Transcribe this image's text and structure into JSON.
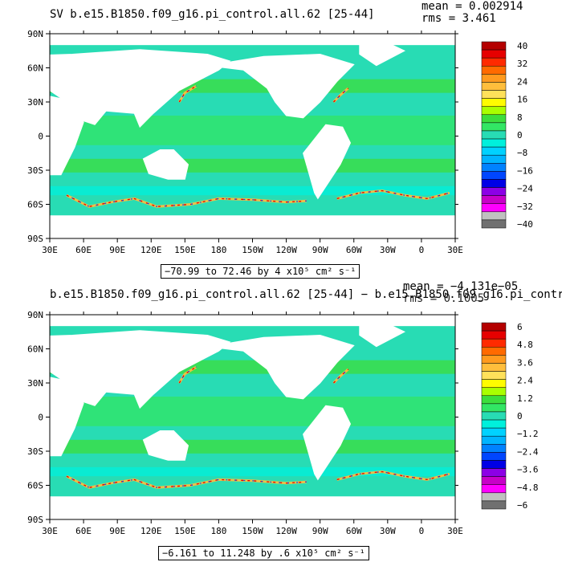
{
  "chart_data": [
    {
      "type": "heatmap",
      "title": "SV b.e15.B1850.f09_g16.pi_control.all.62 [25-44]",
      "stats": {
        "mean": "mean = 0.002914",
        "rms": "rms = 3.461"
      },
      "x_ticks": [
        "30E",
        "60E",
        "90E",
        "120E",
        "150E",
        "180",
        "150W",
        "120W",
        "90W",
        "60W",
        "30W",
        "0",
        "30E"
      ],
      "y_ticks": [
        "90N",
        "60N",
        "30N",
        "0",
        "30S",
        "60S",
        "90S"
      ],
      "range_label": "−70.99 to 72.46 by 4 x10⁵ cm² s⁻¹",
      "colorbar": {
        "labels": [
          "40",
          "32",
          "24",
          "16",
          "8",
          "0",
          "−8",
          "−16",
          "−24",
          "−32",
          "−40"
        ],
        "colors": [
          "#b40000",
          "#e60000",
          "#ff2a00",
          "#ff6a00",
          "#ff9a1e",
          "#ffbe3c",
          "#ffe15a",
          "#fffc00",
          "#aaff00",
          "#3cde3c",
          "#32e664",
          "#28dcb4",
          "#00f0dc",
          "#00d2ff",
          "#00b4ff",
          "#0082ff",
          "#0046ff",
          "#0000e6",
          "#8c00e6",
          "#c800c8",
          "#ff00ff",
          "#c0c0c0",
          "#707070"
        ]
      }
    },
    {
      "type": "heatmap",
      "title": "b.e15.B1850.f09_g16.pi_control.all.62 [25-44] − b.e15.B1850.f09_g16.pi_control",
      "stats": {
        "mean": "mean = −4.131e−05",
        "rms": "rms = 0.1005"
      },
      "x_ticks": [
        "30E",
        "60E",
        "90E",
        "120E",
        "150E",
        "180",
        "150W",
        "120W",
        "90W",
        "60W",
        "30W",
        "0",
        "30E"
      ],
      "y_ticks": [
        "90N",
        "60N",
        "30N",
        "0",
        "30S",
        "60S",
        "90S"
      ],
      "range_label": "−6.161 to 11.248 by .6 x10⁵ cm² s⁻¹",
      "colorbar": {
        "labels": [
          "6",
          "4.8",
          "3.6",
          "2.4",
          "1.2",
          "0",
          "−1.2",
          "−2.4",
          "−3.6",
          "−4.8",
          "−6"
        ],
        "colors": [
          "#b40000",
          "#e60000",
          "#ff2a00",
          "#ff6a00",
          "#ff9a1e",
          "#ffbe3c",
          "#ffe15a",
          "#fffc00",
          "#aaff00",
          "#3cde3c",
          "#32e664",
          "#28dcb4",
          "#00f0dc",
          "#00d2ff",
          "#00b4ff",
          "#0082ff",
          "#0046ff",
          "#0000e6",
          "#8c00e6",
          "#c800c8",
          "#ff00ff",
          "#c0c0c0",
          "#707070"
        ]
      }
    }
  ]
}
